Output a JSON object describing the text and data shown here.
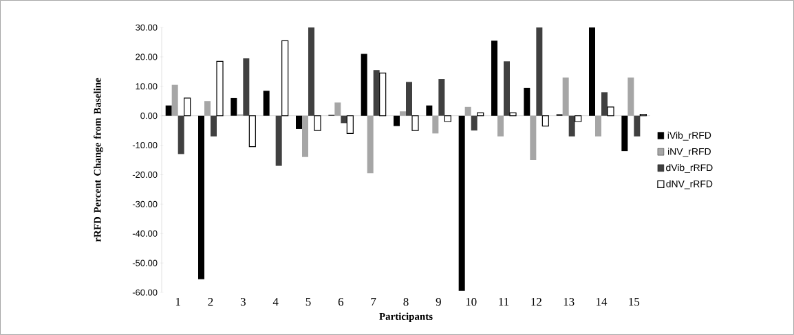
{
  "chart_data": {
    "type": "bar",
    "xlabel": "Participants",
    "ylabel": "rRFD Percent Change from Baseline",
    "categories": [
      "1",
      "2",
      "3",
      "4",
      "5",
      "6",
      "7",
      "8",
      "9",
      "10",
      "11",
      "12",
      "13",
      "14",
      "15"
    ],
    "series": [
      {
        "name": "iVib_rRFD",
        "color": "#000000",
        "values": [
          3.5,
          -55.5,
          6,
          8.5,
          -4.5,
          0.3,
          21,
          -3.5,
          3.5,
          -59.5,
          25.5,
          9.5,
          0.5,
          30,
          -12
        ]
      },
      {
        "name": "iNV_rRFD",
        "color": "#a6a6a6",
        "values": [
          10.5,
          5,
          0.5,
          0,
          -14,
          4.5,
          -19.5,
          1.5,
          -6,
          3,
          -7,
          -15,
          13,
          -7,
          13
        ]
      },
      {
        "name": "dVib_rRFD",
        "color": "#404040",
        "values": [
          -13,
          -7,
          19.5,
          -17,
          30,
          -2.5,
          15.5,
          11.5,
          12.5,
          -5,
          18.5,
          30,
          -7,
          8,
          -7
        ]
      },
      {
        "name": "dNV_rRFD",
        "color": "#ffffff",
        "values": [
          6,
          18.5,
          -10.5,
          25.5,
          -5,
          -6,
          14.5,
          -5,
          -2,
          1,
          1,
          -3.5,
          -2,
          3,
          0.5
        ]
      }
    ],
    "ylim": [
      -60,
      30
    ],
    "yticks": [
      {
        "value": -60,
        "label": "-60.00"
      },
      {
        "value": -50,
        "label": "-50.00"
      },
      {
        "value": -40,
        "label": "-40.00"
      },
      {
        "value": -30,
        "label": "-30.00"
      },
      {
        "value": -20,
        "label": "-20.00"
      },
      {
        "value": -10,
        "label": "-10.00"
      },
      {
        "value": 0,
        "label": "0.00"
      },
      {
        "value": 10,
        "label": "10.00"
      },
      {
        "value": 20,
        "label": "20.00"
      },
      {
        "value": 30,
        "label": "30.00"
      }
    ],
    "ref_lines": [
      {
        "axis": "y",
        "value": 0,
        "color": "#b3b3b3"
      }
    ],
    "grid": false,
    "legend": "right"
  }
}
